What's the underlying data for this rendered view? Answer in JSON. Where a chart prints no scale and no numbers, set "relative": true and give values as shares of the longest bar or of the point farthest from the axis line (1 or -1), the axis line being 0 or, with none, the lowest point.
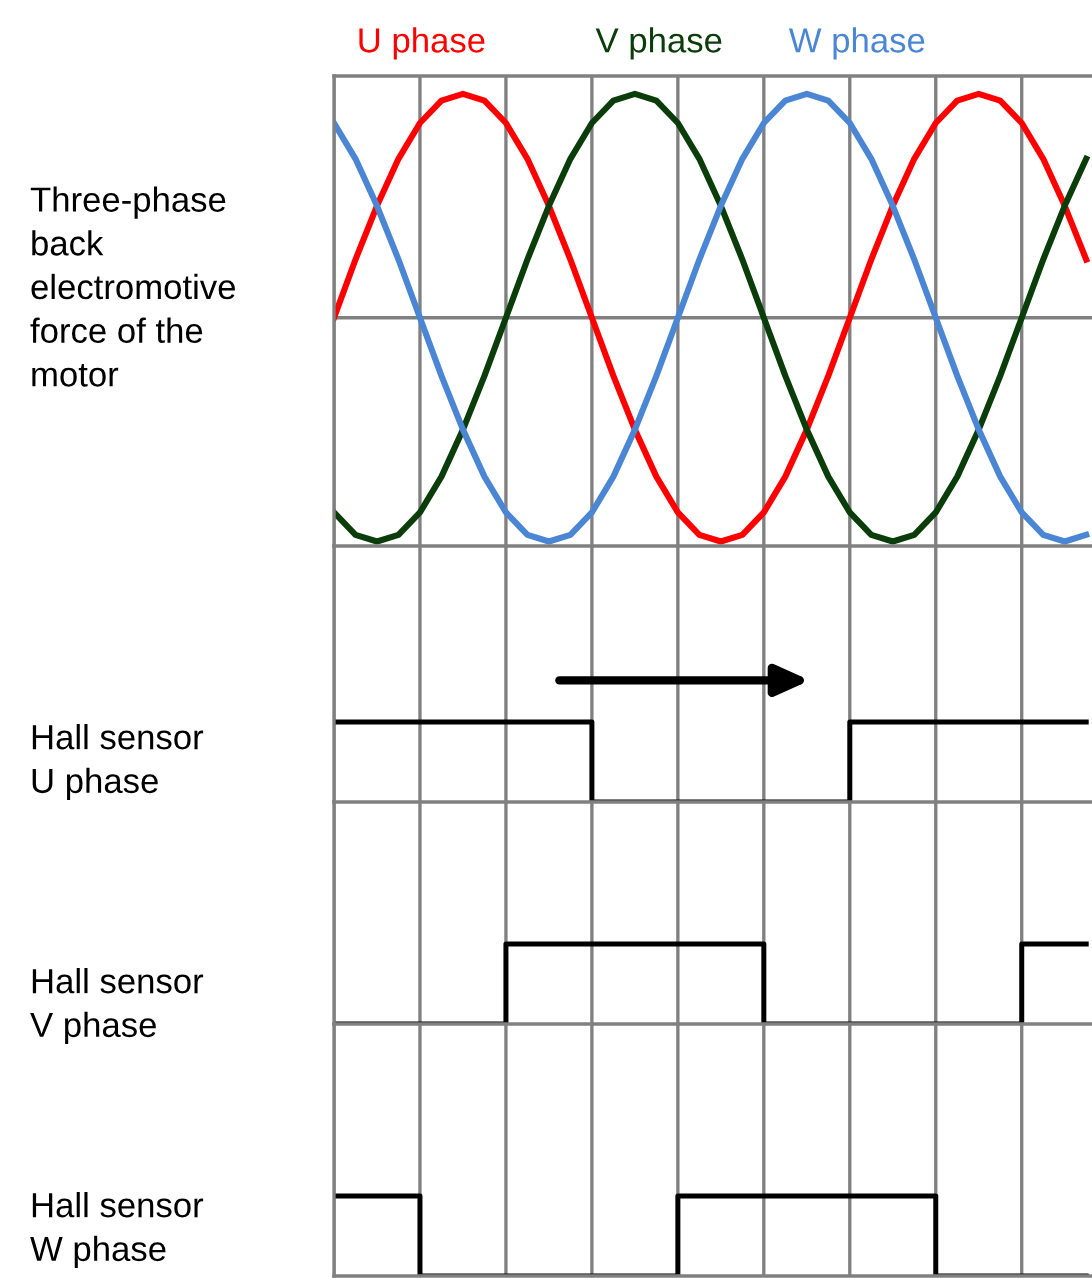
{
  "chart_data": [
    {
      "type": "line",
      "relative": true,
      "ylabel": "Three-phase\nback\nelectromotive\nforce of the\nmotor",
      "grid": "x",
      "line_style": "solid",
      "categories": [
        null,
        null,
        null,
        null,
        null,
        null,
        null,
        null,
        null,
        null,
        null,
        null,
        null,
        null,
        null,
        null,
        null,
        null,
        null,
        null,
        null,
        null,
        null,
        null,
        null,
        null,
        null,
        null,
        null,
        null,
        null,
        null,
        null,
        null,
        null,
        null
      ],
      "series": [
        {
          "name": "U phase",
          "color": "#ff0000",
          "values": [
            0,
            0.26,
            0.5,
            0.71,
            0.87,
            0.97,
            1,
            0.97,
            0.87,
            0.71,
            0.5,
            0.26,
            0,
            -0.26,
            -0.5,
            -0.71,
            -0.87,
            -0.97,
            -1,
            -0.97,
            -0.87,
            -0.71,
            -0.5,
            -0.26,
            0,
            0.26,
            0.5,
            0.71,
            0.87,
            0.97,
            1,
            0.97,
            0.87,
            0.71,
            0.5,
            0.26
          ]
        },
        {
          "name": "V phase",
          "color": "#0b3d0b",
          "values": [
            -0.87,
            -0.97,
            -1,
            -0.97,
            -0.87,
            -0.71,
            -0.5,
            -0.26,
            0,
            0.26,
            0.5,
            0.71,
            0.87,
            0.97,
            1,
            0.97,
            0.87,
            0.71,
            0.5,
            0.26,
            0,
            -0.26,
            -0.5,
            -0.71,
            -0.87,
            -0.97,
            -1,
            -0.97,
            -0.87,
            -0.71,
            -0.5,
            -0.26,
            0,
            0.26,
            0.5,
            0.71
          ]
        },
        {
          "name": "W phase",
          "color": "#4a86d4",
          "values": [
            0.87,
            0.71,
            0.5,
            0.26,
            0,
            -0.26,
            -0.5,
            -0.71,
            -0.87,
            -0.97,
            -1,
            -0.97,
            -0.87,
            -0.71,
            -0.5,
            -0.26,
            0,
            0.26,
            0.5,
            0.71,
            0.87,
            0.97,
            1,
            0.97,
            0.87,
            0.71,
            0.5,
            0.26,
            0,
            -0.26,
            -0.5,
            -0.71,
            -0.87,
            -0.97,
            -1,
            -0.97
          ]
        }
      ]
    },
    {
      "type": "step",
      "relative": true,
      "ylabel": "Hall sensor\nU phase",
      "grid": "x",
      "categories": [
        null,
        null,
        null,
        null,
        null,
        null,
        null,
        null,
        null,
        null,
        null,
        null,
        null,
        null,
        null,
        null,
        null,
        null,
        null,
        null,
        null,
        null,
        null,
        null,
        null,
        null,
        null,
        null,
        null,
        null,
        null,
        null,
        null,
        null,
        null,
        null
      ],
      "series": [
        {
          "color": "#000000",
          "values": [
            1,
            1,
            1,
            1,
            1,
            1,
            1,
            1,
            1,
            1,
            1,
            1,
            0,
            0,
            0,
            0,
            0,
            0,
            0,
            0,
            0,
            0,
            0,
            0,
            1,
            1,
            1,
            1,
            1,
            1,
            1,
            1,
            1,
            1,
            1,
            1
          ]
        }
      ]
    },
    {
      "type": "step",
      "relative": true,
      "ylabel": "Hall sensor\nV phase",
      "grid": "x",
      "categories": [
        null,
        null,
        null,
        null,
        null,
        null,
        null,
        null,
        null,
        null,
        null,
        null,
        null,
        null,
        null,
        null,
        null,
        null,
        null,
        null,
        null,
        null,
        null,
        null,
        null,
        null,
        null,
        null,
        null,
        null,
        null,
        null,
        null,
        null,
        null,
        null
      ],
      "series": [
        {
          "color": "#000000",
          "values": [
            0,
            0,
            0,
            0,
            0,
            0,
            0,
            0,
            1,
            1,
            1,
            1,
            1,
            1,
            1,
            1,
            1,
            1,
            1,
            1,
            0,
            0,
            0,
            0,
            0,
            0,
            0,
            0,
            0,
            0,
            0,
            0,
            1,
            1,
            1,
            1
          ]
        }
      ]
    },
    {
      "type": "step",
      "relative": true,
      "ylabel": "Hall sensor\nW phase",
      "grid": "x",
      "categories": [
        null,
        null,
        null,
        null,
        null,
        null,
        null,
        null,
        null,
        null,
        null,
        null,
        null,
        null,
        null,
        null,
        null,
        null,
        null,
        null,
        null,
        null,
        null,
        null,
        null,
        null,
        null,
        null,
        null,
        null,
        null,
        null,
        null,
        null,
        null,
        null
      ],
      "series": [
        {
          "color": "#000000",
          "values": [
            1,
            1,
            1,
            1,
            0,
            0,
            0,
            0,
            0,
            0,
            0,
            0,
            0,
            0,
            0,
            0,
            1,
            1,
            1,
            1,
            1,
            1,
            1,
            1,
            1,
            1,
            1,
            1,
            0,
            0,
            0,
            0,
            0,
            0,
            0,
            0
          ]
        }
      ]
    }
  ]
}
